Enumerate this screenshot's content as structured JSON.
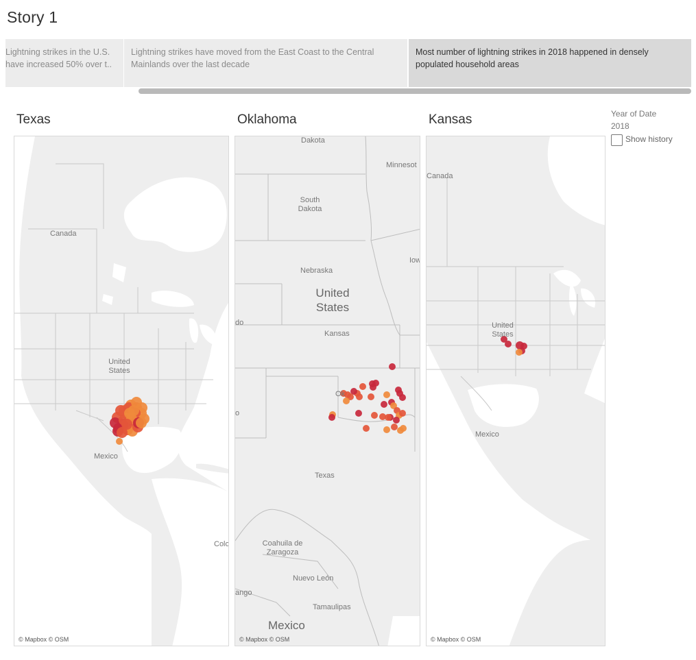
{
  "story": {
    "title": "Story 1",
    "points": [
      {
        "text": "Lightning strikes in the U.S. have increased 50% over t..",
        "active": false
      },
      {
        "text": "Lightning strikes have moved from the East Coast to the Central Mainlands over the last decade",
        "active": false
      },
      {
        "text": "Most number of lightning strikes in 2018 happened in densely populated household areas",
        "active": true
      }
    ]
  },
  "maps": [
    {
      "title": "Texas",
      "labels": [
        "Canada",
        "United States",
        "Mexico",
        "Colo"
      ],
      "attribution": "© Mapbox © OSM"
    },
    {
      "title": "Oklahoma",
      "labels": [
        "Dakota",
        "Minnesot",
        "South Dakota",
        "Nebraska",
        "Iow",
        "United States",
        "do",
        "Kansas",
        "Ok",
        "o",
        "Texas",
        "Coahuila de Zaragoza",
        "Nuevo León",
        "ango",
        "Tamaulipas",
        "Mexico"
      ],
      "attribution": "© Mapbox © OSM"
    },
    {
      "title": "Kansas",
      "labels": [
        "Canada",
        "United States",
        "Mexico"
      ],
      "attribution": "© Mapbox © OSM"
    }
  ],
  "filter": {
    "title": "Year of Date",
    "value": "2018",
    "show_history_label": "Show history",
    "show_history_checked": false
  },
  "colors": {
    "mark_dark": "#c8283c",
    "mark_mid": "#e4563a",
    "mark_light": "#f08a3c",
    "land": "#eeeeee",
    "water": "#ffffff",
    "border": "#c8c8c8"
  }
}
